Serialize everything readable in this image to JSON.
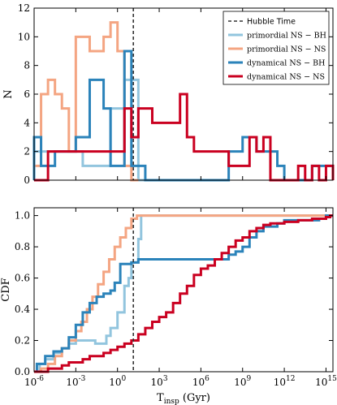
{
  "chart_data": [
    {
      "type": "step-histogram",
      "ylabel": "N",
      "xlabel": "",
      "xscale": "log10",
      "xlim_log10": [
        -6,
        15.5
      ],
      "ylim": [
        0,
        12
      ],
      "yticks": [
        0,
        2,
        4,
        6,
        8,
        10,
        12
      ],
      "hubble_time_log10": 1.14,
      "legend": {
        "placement": "top-right",
        "items": [
          {
            "key": "hubble",
            "label": "Hubble Time"
          },
          {
            "key": "pbh",
            "label": "primordial NS − BH"
          },
          {
            "key": "pns",
            "label": "primordial NS − NS"
          },
          {
            "key": "dbh",
            "label": "dynamical NS − BH"
          },
          {
            "key": "dns",
            "label": "dynamical NS − NS"
          }
        ]
      },
      "series": [
        {
          "key": "pbh",
          "name": "primordial NS − BH",
          "color": "#92c5de",
          "bins_log10": [
            -6,
            -5.5,
            -5,
            -4.5,
            -4,
            -3.5,
            -3,
            -2.5,
            -2,
            -1.5,
            -1,
            -0.5,
            0,
            0.5,
            1,
            1.5,
            2,
            2.5,
            3
          ],
          "counts": [
            2,
            2,
            2,
            2,
            2,
            2,
            2,
            1,
            1,
            1,
            1,
            5,
            5,
            7,
            7,
            0,
            0,
            0
          ]
        },
        {
          "key": "pns",
          "name": "primordial NS − NS",
          "color": "#f4a582",
          "bins_log10": [
            -6,
            -5.5,
            -5,
            -4.5,
            -4,
            -3.5,
            -3,
            -2.5,
            -2,
            -1.5,
            -1,
            -0.5,
            0,
            0.5,
            1,
            1.5
          ],
          "counts": [
            1,
            6,
            7,
            6,
            5,
            2,
            10,
            10,
            9,
            9,
            10,
            11,
            9,
            1,
            0
          ]
        },
        {
          "key": "dbh",
          "name": "dynamical NS − BH",
          "color": "#2b83ba",
          "bins_log10": [
            -6,
            -5.5,
            -5,
            -4.5,
            -4,
            -3.5,
            -3,
            -2.5,
            -2,
            -1.5,
            -1,
            -0.5,
            0,
            0.5,
            1,
            1.5,
            2,
            2.5,
            3,
            3.5,
            4,
            4.5,
            5,
            5.5,
            6,
            6.5,
            7,
            7.5,
            8,
            8.5,
            9,
            9.5,
            10,
            10.5,
            11,
            11.5,
            12,
            12.5,
            13,
            13.5,
            14,
            14.5,
            15,
            15.5
          ],
          "counts": [
            3,
            1,
            1,
            2,
            2,
            2,
            3,
            3,
            7,
            7,
            5,
            1,
            1,
            9,
            1,
            1,
            0,
            0,
            0,
            0,
            0,
            0,
            0,
            0,
            0,
            0,
            0,
            0,
            2,
            2,
            3,
            3,
            2,
            2,
            2,
            1,
            0,
            0,
            0,
            0,
            1,
            1,
            1
          ]
        },
        {
          "key": "dns",
          "name": "dynamical NS − NS",
          "color": "#ca0020",
          "bins_log10": [
            -6,
            -5.5,
            -5,
            -4.5,
            -4,
            -3.5,
            -3,
            -2.5,
            -2,
            -1.5,
            -1,
            -0.5,
            0,
            0.5,
            1,
            1.5,
            2,
            2.5,
            3,
            3.5,
            4,
            4.5,
            5,
            5.5,
            6,
            6.5,
            7,
            7.5,
            8,
            8.5,
            9,
            9.5,
            10,
            10.5,
            11,
            11.5,
            12,
            12.5,
            13,
            13.5,
            14,
            14.5,
            15,
            15.5
          ],
          "counts": [
            0,
            0,
            2,
            2,
            2,
            2,
            2,
            2,
            2,
            2,
            2,
            2,
            2,
            5,
            3,
            5,
            5,
            4,
            4,
            4,
            4,
            6,
            3,
            2,
            2,
            2,
            2,
            2,
            1,
            1,
            1,
            3,
            2,
            3,
            0,
            0,
            0,
            0,
            1,
            0,
            1,
            0,
            1
          ]
        }
      ]
    },
    {
      "type": "step-cdf",
      "ylabel": "CDF",
      "xlabel": "T_insp (Gyr)",
      "xscale": "log10",
      "xlim_log10": [
        -6,
        15.5
      ],
      "ylim": [
        0,
        1.05
      ],
      "yticks": [
        0.0,
        0.2,
        0.4,
        0.6,
        0.8,
        1.0
      ],
      "xticks_log10": [
        -6,
        -3,
        0,
        3,
        6,
        9,
        12,
        15
      ],
      "hubble_time_log10": 1.14,
      "series": [
        {
          "key": "pbh",
          "name": "primordial NS − BH",
          "color": "#92c5de",
          "points": [
            [
              -6,
              0.0
            ],
            [
              -5.6,
              0.05
            ],
            [
              -5.2,
              0.08
            ],
            [
              -4.6,
              0.12
            ],
            [
              -4.0,
              0.15
            ],
            [
              -3.5,
              0.18
            ],
            [
              -3.0,
              0.2
            ],
            [
              -2.5,
              0.2
            ],
            [
              -2.0,
              0.2
            ],
            [
              -1.6,
              0.18
            ],
            [
              -1.2,
              0.18
            ],
            [
              -0.8,
              0.23
            ],
            [
              -0.5,
              0.28
            ],
            [
              0.0,
              0.38
            ],
            [
              0.5,
              0.55
            ],
            [
              0.8,
              0.6
            ],
            [
              1.0,
              0.7
            ],
            [
              1.5,
              0.85
            ],
            [
              1.7,
              1.0
            ],
            [
              15.5,
              1.0
            ]
          ]
        },
        {
          "key": "pns",
          "name": "primordial NS − NS",
          "color": "#f4a582",
          "points": [
            [
              -6,
              0.0
            ],
            [
              -5.5,
              0.02
            ],
            [
              -5.0,
              0.05
            ],
            [
              -4.5,
              0.1
            ],
            [
              -4.0,
              0.15
            ],
            [
              -3.5,
              0.2
            ],
            [
              -3.0,
              0.26
            ],
            [
              -2.6,
              0.32
            ],
            [
              -2.2,
              0.4
            ],
            [
              -1.8,
              0.48
            ],
            [
              -1.4,
              0.56
            ],
            [
              -1.0,
              0.64
            ],
            [
              -0.6,
              0.72
            ],
            [
              -0.2,
              0.8
            ],
            [
              0.2,
              0.86
            ],
            [
              0.6,
              0.92
            ],
            [
              1.0,
              0.98
            ],
            [
              1.4,
              1.0
            ],
            [
              15.5,
              1.0
            ]
          ]
        },
        {
          "key": "dbh",
          "name": "dynamical NS − BH",
          "color": "#2b83ba",
          "points": [
            [
              -6,
              0.0
            ],
            [
              -5.8,
              0.05
            ],
            [
              -5.2,
              0.1
            ],
            [
              -4.6,
              0.13
            ],
            [
              -4.0,
              0.15
            ],
            [
              -3.5,
              0.22
            ],
            [
              -3.0,
              0.3
            ],
            [
              -2.5,
              0.38
            ],
            [
              -2.0,
              0.44
            ],
            [
              -1.5,
              0.48
            ],
            [
              -1.0,
              0.5
            ],
            [
              -0.5,
              0.52
            ],
            [
              -0.2,
              0.57
            ],
            [
              0.2,
              0.69
            ],
            [
              1.0,
              0.7
            ],
            [
              1.5,
              0.72
            ],
            [
              3.0,
              0.72
            ],
            [
              4.0,
              0.72
            ],
            [
              5.0,
              0.72
            ],
            [
              6.0,
              0.72
            ],
            [
              7.0,
              0.72
            ],
            [
              8.0,
              0.75
            ],
            [
              8.5,
              0.77
            ],
            [
              9.0,
              0.8
            ],
            [
              9.5,
              0.86
            ],
            [
              10.0,
              0.9
            ],
            [
              10.5,
              0.93
            ],
            [
              11.5,
              0.95
            ],
            [
              12.0,
              0.97
            ],
            [
              14.5,
              0.98
            ],
            [
              15.0,
              1.0
            ],
            [
              15.5,
              1.0
            ]
          ]
        },
        {
          "key": "dns",
          "name": "dynamical NS − NS",
          "color": "#ca0020",
          "points": [
            [
              -6,
              0.0
            ],
            [
              -5.0,
              0.02
            ],
            [
              -4.0,
              0.04
            ],
            [
              -3.5,
              0.06
            ],
            [
              -2.5,
              0.08
            ],
            [
              -2.0,
              0.1
            ],
            [
              -1.0,
              0.12
            ],
            [
              -0.5,
              0.14
            ],
            [
              0.0,
              0.16
            ],
            [
              0.5,
              0.18
            ],
            [
              1.0,
              0.2
            ],
            [
              1.5,
              0.24
            ],
            [
              2.0,
              0.28
            ],
            [
              2.5,
              0.32
            ],
            [
              3.0,
              0.35
            ],
            [
              3.5,
              0.38
            ],
            [
              4.0,
              0.44
            ],
            [
              4.5,
              0.5
            ],
            [
              5.0,
              0.55
            ],
            [
              5.5,
              0.62
            ],
            [
              6.0,
              0.66
            ],
            [
              6.5,
              0.68
            ],
            [
              7.0,
              0.72
            ],
            [
              7.5,
              0.76
            ],
            [
              8.0,
              0.8
            ],
            [
              8.5,
              0.84
            ],
            [
              9.0,
              0.86
            ],
            [
              9.5,
              0.9
            ],
            [
              10.0,
              0.92
            ],
            [
              10.5,
              0.94
            ],
            [
              11.0,
              0.95
            ],
            [
              12.0,
              0.96
            ],
            [
              13.0,
              0.97
            ],
            [
              14.0,
              0.98
            ],
            [
              15.0,
              0.99
            ],
            [
              15.3,
              1.0
            ],
            [
              15.5,
              1.0
            ]
          ]
        }
      ]
    }
  ]
}
